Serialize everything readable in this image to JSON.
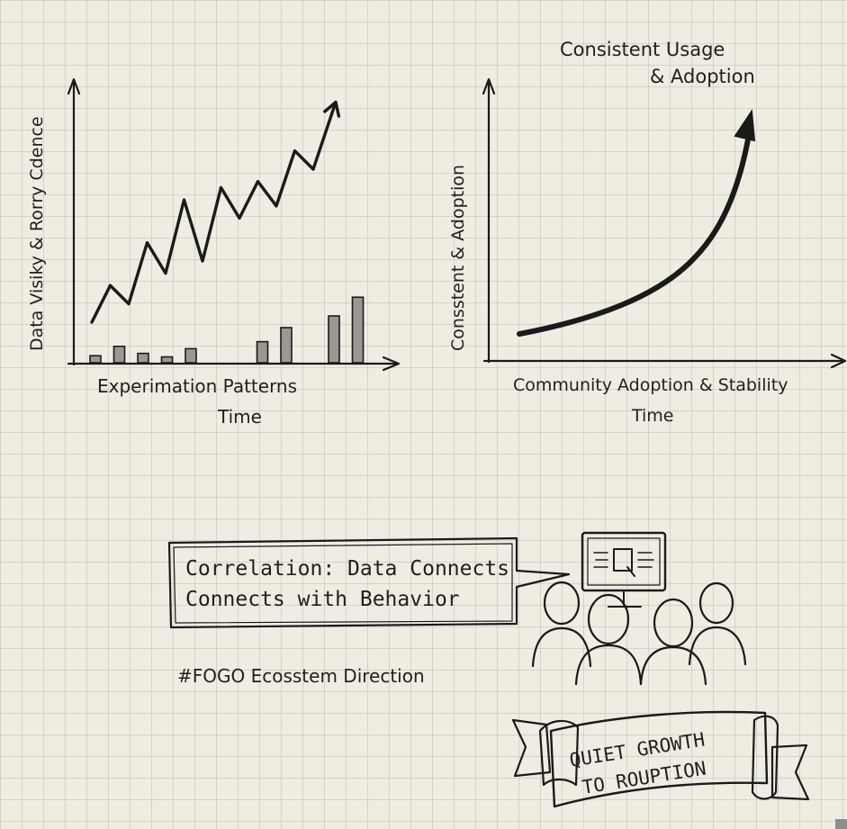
{
  "chart_data": [
    {
      "type": "line",
      "ylabel": "Data Visiky & Rorry Cdence",
      "xlabel": "Experimation Patterns",
      "xlabel2": "Time",
      "line_points": [
        [
          0,
          0
        ],
        [
          1,
          1.2
        ],
        [
          2,
          0.6
        ],
        [
          3,
          2.6
        ],
        [
          4,
          1.6
        ],
        [
          5,
          4.0
        ],
        [
          6,
          2.0
        ],
        [
          7,
          4.4
        ],
        [
          8,
          3.4
        ],
        [
          9,
          4.6
        ],
        [
          10,
          3.8
        ],
        [
          11,
          5.6
        ],
        [
          12,
          5.0
        ],
        [
          13,
          6.8
        ]
      ],
      "bar_values": [
        0.3,
        0.7,
        0.4,
        0.25,
        0.6,
        0,
        0,
        0.9,
        1.5,
        0,
        2.0,
        2.8
      ],
      "ylim": [
        0,
        8
      ]
    },
    {
      "type": "line",
      "title_line1": "Consistent Usage",
      "title_line2": "& Adoption",
      "ylabel": "Consstent & Adoption",
      "xlabel": "Community Adoption & Stability",
      "xlabel2": "Time",
      "curve": "exponential"
    }
  ],
  "callout": {
    "line1": "Correlation: Data Connects",
    "line2": "Connects with Behavior"
  },
  "hashtag": "#FOGO Ecosstem Direction",
  "banner": {
    "line1": "QUIET GROWTH",
    "line2": "TO ROUPTION"
  }
}
